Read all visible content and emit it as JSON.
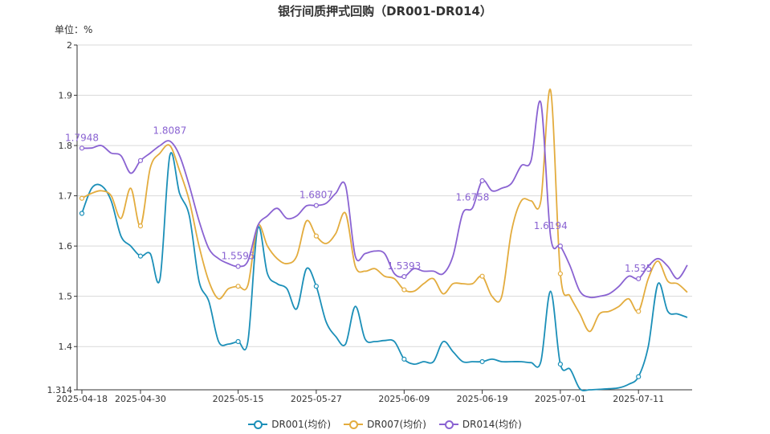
{
  "chart_data": {
    "type": "line",
    "title": "银行间质押式回购（DR001-DR014）",
    "unit_label": "单位：%",
    "xlabel": "",
    "ylabel": "",
    "ylim": [
      1.314,
      2
    ],
    "y_ticks": [
      "1.314",
      "1.4",
      "1.5",
      "1.6",
      "1.7",
      "1.8",
      "1.9",
      "2"
    ],
    "y_tick_values": [
      1.314,
      1.4,
      1.5,
      1.6,
      1.7,
      1.8,
      1.9,
      2
    ],
    "x_tick_labels": [
      "2025-04-18",
      "2025-04-30",
      "2025-05-15",
      "2025-05-27",
      "2025-06-09",
      "2025-06-19",
      "2025-07-01",
      "2025-07-11"
    ],
    "x_tick_indices": [
      0,
      6,
      16,
      24,
      33,
      41,
      49,
      57
    ],
    "n_points": 63,
    "grid": "horizontal",
    "legend_position": "bottom",
    "series": [
      {
        "name": "DR001(均价)",
        "color": "#1b8fb8",
        "values": [
          1.665,
          1.715,
          1.72,
          1.69,
          1.62,
          1.6,
          1.58,
          1.585,
          1.535,
          1.78,
          1.705,
          1.66,
          1.53,
          1.49,
          1.41,
          1.405,
          1.41,
          1.41,
          1.635,
          1.545,
          1.525,
          1.515,
          1.475,
          1.555,
          1.52,
          1.45,
          1.42,
          1.405,
          1.48,
          1.415,
          1.41,
          1.412,
          1.41,
          1.375,
          1.365,
          1.37,
          1.37,
          1.41,
          1.39,
          1.37,
          1.37,
          1.37,
          1.375,
          1.37,
          1.37,
          1.37,
          1.368,
          1.37,
          1.51,
          1.365,
          1.355,
          1.316,
          1.314,
          1.315,
          1.316,
          1.318,
          1.325,
          1.34,
          1.4,
          1.525,
          1.47,
          1.465,
          1.458
        ],
        "labels": []
      },
      {
        "name": "DR007(均价)",
        "color": "#e3ac3e",
        "values": [
          1.695,
          1.705,
          1.71,
          1.7,
          1.655,
          1.715,
          1.64,
          1.755,
          1.785,
          1.8,
          1.75,
          1.69,
          1.6,
          1.53,
          1.495,
          1.515,
          1.52,
          1.522,
          1.64,
          1.6,
          1.575,
          1.565,
          1.58,
          1.65,
          1.62,
          1.605,
          1.625,
          1.665,
          1.56,
          1.55,
          1.555,
          1.54,
          1.535,
          1.513,
          1.51,
          1.525,
          1.535,
          1.505,
          1.525,
          1.525,
          1.525,
          1.54,
          1.5,
          1.5,
          1.63,
          1.69,
          1.69,
          1.69,
          1.91,
          1.545,
          1.5,
          1.465,
          1.43,
          1.465,
          1.47,
          1.48,
          1.495,
          1.47,
          1.535,
          1.57,
          1.53,
          1.525,
          1.508
        ],
        "labels": []
      },
      {
        "name": "DR014(均价)",
        "color": "#8a63d2",
        "values": [
          1.7948,
          1.795,
          1.8,
          1.785,
          1.78,
          1.745,
          1.77,
          1.785,
          1.8,
          1.8087,
          1.78,
          1.72,
          1.65,
          1.595,
          1.575,
          1.565,
          1.5595,
          1.57,
          1.64,
          1.66,
          1.675,
          1.655,
          1.66,
          1.68,
          1.6807,
          1.685,
          1.705,
          1.72,
          1.58,
          1.585,
          1.59,
          1.585,
          1.545,
          1.5393,
          1.555,
          1.55,
          1.55,
          1.545,
          1.58,
          1.665,
          1.6758,
          1.73,
          1.71,
          1.715,
          1.725,
          1.76,
          1.77,
          1.885,
          1.6194,
          1.6,
          1.56,
          1.51,
          1.498,
          1.5,
          1.505,
          1.52,
          1.54,
          1.535,
          1.56,
          1.575,
          1.56,
          1.535,
          1.562
        ],
        "labels": [
          {
            "index": 0,
            "text": "1.7948"
          },
          {
            "index": 9,
            "text": "1.8087"
          },
          {
            "index": 16,
            "text": "1.5595"
          },
          {
            "index": 24,
            "text": "1.6807"
          },
          {
            "index": 33,
            "text": "1.5393"
          },
          {
            "index": 40,
            "text": "1.6758"
          },
          {
            "index": 48,
            "text": "1.6194"
          },
          {
            "index": 57,
            "text": "1.535"
          }
        ]
      }
    ]
  }
}
